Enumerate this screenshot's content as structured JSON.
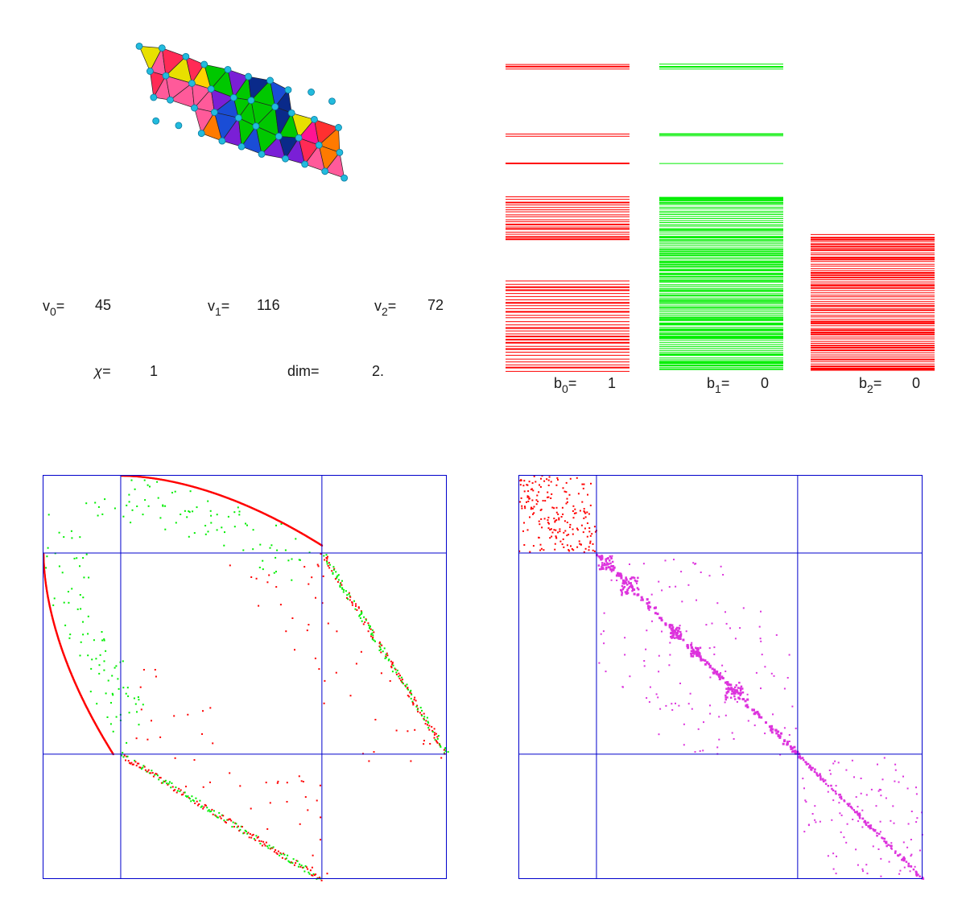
{
  "stats": {
    "v0": {
      "label": "v",
      "sub": "0",
      "eq": "=",
      "value": "45"
    },
    "v1": {
      "label": "v",
      "sub": "1",
      "eq": "=",
      "value": "116"
    },
    "v2": {
      "label": "v",
      "sub": "2",
      "eq": "=",
      "value": "72"
    },
    "chi": {
      "label": "χ=",
      "value": "1"
    },
    "dim": {
      "label": "dim=",
      "value": "2."
    }
  },
  "betti": {
    "b0": {
      "label": "b",
      "sub": "0",
      "eq": "=",
      "value": "1"
    },
    "b1": {
      "label": "b",
      "sub": "1",
      "eq": "=",
      "value": "0"
    },
    "b2": {
      "label": "b",
      "sub": "2",
      "eq": "=",
      "value": "0"
    }
  },
  "colors": {
    "red": "#ff0000",
    "green": "#00ee00",
    "blue": "#0000cc",
    "magenta": "#dd33dd",
    "cyan": "#22bbdd"
  }
}
